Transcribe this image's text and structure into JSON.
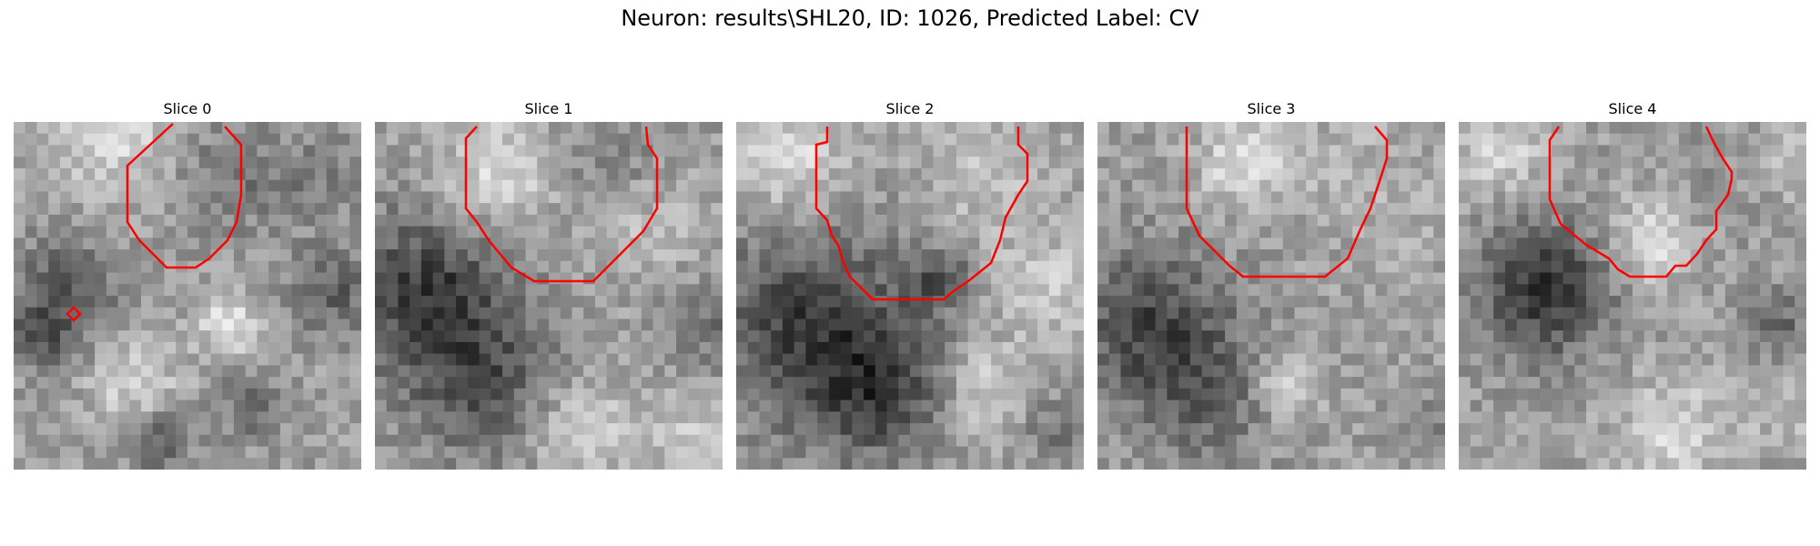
{
  "title": "Neuron: results\\SHL20, ID: 1026, Predicted Label: CV",
  "slices": [
    {
      "label": "Slice 0"
    },
    {
      "label": "Slice 1"
    },
    {
      "label": "Slice 2"
    },
    {
      "label": "Slice 3"
    },
    {
      "label": "Slice 4"
    }
  ],
  "colors": {
    "contour": "#ff0000",
    "background": "#ffffff"
  }
}
